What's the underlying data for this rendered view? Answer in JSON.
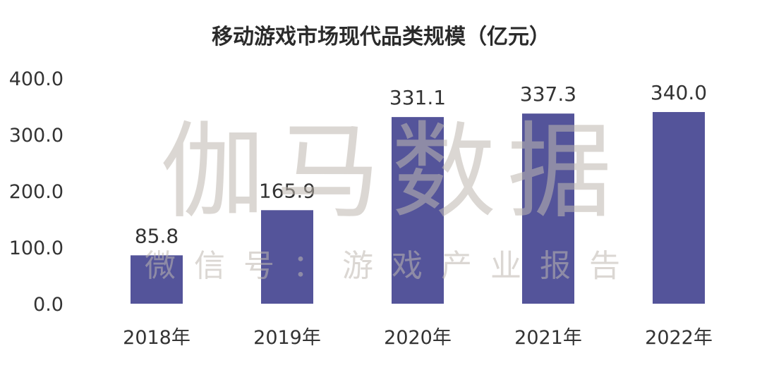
{
  "chart_data": {
    "type": "bar",
    "title": "移动游戏市场现代品类规模（亿元）",
    "categories": [
      "2018年",
      "2019年",
      "2020年",
      "2021年",
      "2022年"
    ],
    "values": [
      85.8,
      165.9,
      331.1,
      337.3,
      340.0
    ],
    "value_labels": [
      "85.8",
      "165.9",
      "331.1",
      "337.3",
      "340.0"
    ],
    "ylim": [
      0,
      400
    ],
    "y_ticks": [
      "0.0",
      "100.0",
      "200.0",
      "300.0",
      "400.0"
    ],
    "xlabel": "",
    "ylabel": "",
    "grid": false,
    "legend": "none",
    "bar_color": "#54549a"
  },
  "watermark": {
    "main": "伽马数据",
    "sub": "微信号：游戏产业报告"
  }
}
